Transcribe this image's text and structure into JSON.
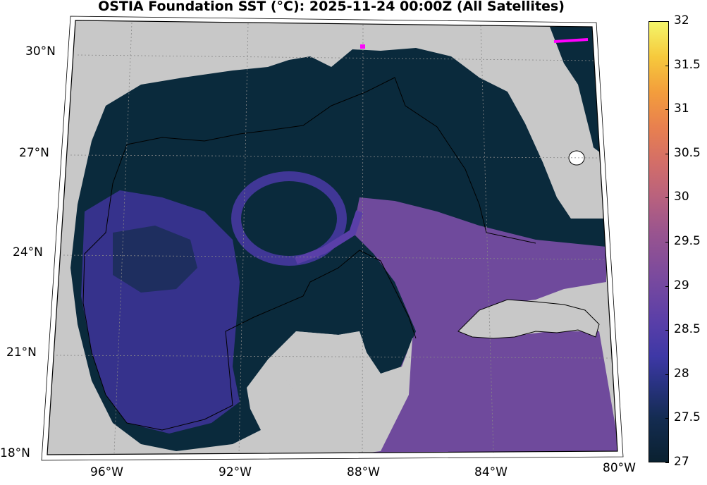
{
  "title": "OSTIA Foundation SST (°C): 2025-11-24 00:00Z (All Satellites)",
  "map": {
    "latitude_labels": [
      "30°N",
      "27°N",
      "24°N",
      "21°N",
      "18°N"
    ],
    "longitude_labels": [
      "96°W",
      "92°W",
      "88°W",
      "84°W",
      "80°W"
    ],
    "colors": {
      "land": "#c8c8c8",
      "cold_water": "#0a2a3c",
      "warm_water": "#7a4f9c",
      "frame": "#000000",
      "highlight": "#ff00ff"
    }
  },
  "colorbar": {
    "ticks": [
      "32",
      "31.5",
      "31",
      "30.5",
      "30",
      "29.5",
      "29",
      "28.5",
      "28",
      "27.5",
      "27"
    ],
    "min": 27,
    "max": 32
  }
}
